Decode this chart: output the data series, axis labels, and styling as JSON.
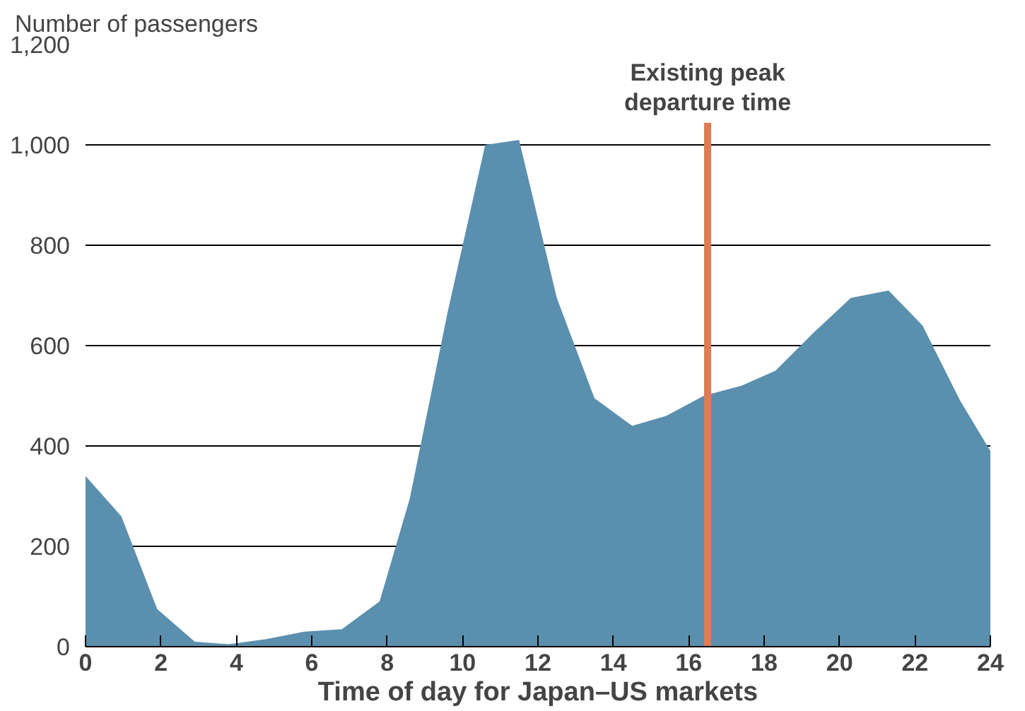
{
  "chart_data": {
    "type": "area",
    "ylabel": "Number of passengers",
    "xlabel": "Time of day for Japan–US markets",
    "x": [
      0,
      0.95,
      1.9,
      2.9,
      3.8,
      4.8,
      5.8,
      6.8,
      7.8,
      8.6,
      9.6,
      10.6,
      11.5,
      12.5,
      13.5,
      14.5,
      15.4,
      16.4,
      17.4,
      18.3,
      19.3,
      20.3,
      21.3,
      22.2,
      23.2,
      24
    ],
    "series": [
      {
        "color": "#5b8fae",
        "values": [
          340,
          260,
          75,
          10,
          5,
          15,
          30,
          35,
          90,
          295,
          665,
          1000,
          1010,
          695,
          495,
          440,
          460,
          500,
          520,
          550,
          625,
          695,
          710,
          640,
          490,
          390
        ]
      }
    ],
    "xlim": [
      0,
      24
    ],
    "xticks": [
      0,
      2,
      4,
      6,
      8,
      10,
      12,
      14,
      16,
      18,
      20,
      22,
      24
    ],
    "ylim": [
      0,
      1200
    ],
    "yticks": [
      0,
      200,
      400,
      600,
      800,
      {
        "value": 1000,
        "label": "1,000"
      },
      {
        "value": 1200,
        "label": "1,200"
      }
    ],
    "grid": "y",
    "ref_lines": [
      {
        "axis": "x",
        "value": 16.5,
        "label": "Existing peak\ndeparture time",
        "color": "#e07b54"
      }
    ]
  }
}
